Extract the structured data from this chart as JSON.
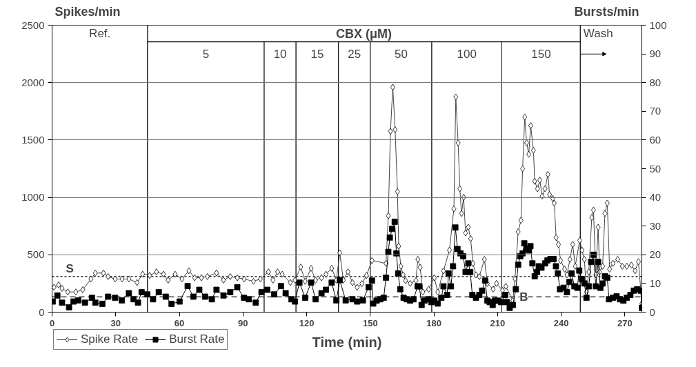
{
  "chart_data": {
    "type": "line",
    "ylabel": "Spikes/min",
    "y2label": "Bursts/min",
    "xlabel": "Time (min)",
    "xlim": [
      0,
      278
    ],
    "xticks": [
      0,
      30,
      60,
      90,
      120,
      150,
      180,
      210,
      240,
      270
    ],
    "ylim": [
      0,
      2500
    ],
    "yticks": [
      0,
      500,
      1000,
      1500,
      2000,
      2500
    ],
    "y2lim": [
      0,
      100
    ],
    "y2ticks": [
      0,
      10,
      20,
      30,
      40,
      50,
      60,
      70,
      80,
      90,
      100
    ],
    "grid": "y",
    "legend": "bottom left",
    "line_style": "solid",
    "bands": [
      {
        "axis": "x",
        "from": 0,
        "to": 45,
        "label": "Ref.",
        "color": "#ffffff"
      },
      {
        "axis": "x",
        "from": 45,
        "to": 100,
        "label": "5",
        "color": "#ffffff"
      },
      {
        "axis": "x",
        "from": 100,
        "to": 115,
        "label": "10",
        "color": "#ffffff"
      },
      {
        "axis": "x",
        "from": 115,
        "to": 135,
        "label": "15",
        "color": "#ffffff"
      },
      {
        "axis": "x",
        "from": 135,
        "to": 150,
        "label": "25",
        "color": "#ffffff"
      },
      {
        "axis": "x",
        "from": 150,
        "to": 179,
        "label": "50",
        "color": "#ffffff"
      },
      {
        "axis": "x",
        "from": 179,
        "to": 212,
        "label": "100",
        "color": "#ffffff"
      },
      {
        "axis": "x",
        "from": 212,
        "to": 249,
        "label": "150",
        "color": "#ffffff"
      },
      {
        "axis": "x",
        "from": 249,
        "to": 278,
        "label": "Wash",
        "color": "#ffffff"
      },
      {
        "axis": "x",
        "from": 45,
        "to": 249,
        "label": "CBX (μM)",
        "color": "#ffffff"
      }
    ],
    "ref_lines": [
      {
        "axis": "y",
        "value": 310,
        "label": "S",
        "line_style": "dotted"
      },
      {
        "axis": "y2",
        "value": 5.3,
        "label": "B",
        "line_style": "dashed"
      }
    ],
    "series": [
      {
        "name": "Spike Rate",
        "color": "#444444",
        "marker": "diamond",
        "x": [
          0.9,
          3.1,
          4.7,
          7.4,
          11.2,
          14.5,
          18.3,
          20.4,
          24.2,
          26.4,
          29.7,
          33,
          36.2,
          40,
          42.7,
          46,
          49.2,
          52.5,
          54.7,
          58,
          61.2,
          64.5,
          67.2,
          70.4,
          73.2,
          77.5,
          80.8,
          84,
          87.3,
          90.5,
          94.9,
          98.2,
          102,
          104.1,
          106.3,
          108.5,
          112.3,
          114.5,
          117.2,
          119.3,
          122.1,
          124.2,
          127,
          129.1,
          131.8,
          134,
          135.6,
          137.3,
          139.5,
          141.6,
          143.8,
          146,
          148.2,
          150.8,
          157.4,
          158.5,
          159.5,
          160.6,
          161.7,
          162.8,
          163.4,
          164.4,
          165.5,
          166.6,
          168.8,
          171.5,
          172.4,
          173.5,
          174.8,
          177.5,
          180.2,
          181.8,
          184.5,
          187.3,
          189.4,
          190.3,
          191.4,
          192.2,
          193,
          194,
          194.9,
          196.2,
          197.3,
          198.4,
          199.8,
          201.4,
          203.8,
          205.2,
          207.9,
          209.5,
          212.3,
          213.9,
          217.2,
          218.2,
          219.7,
          221,
          221.8,
          222.8,
          223.7,
          224.7,
          225.6,
          226.9,
          227.5,
          228.8,
          229.9,
          231,
          232.4,
          233.7,
          234.5,
          236,
          236.7,
          237.6,
          238.7,
          239.7,
          241.6,
          242.7,
          244.1,
          245.4,
          246.6,
          248.7,
          249.8,
          250.9,
          251.9,
          253,
          254.4,
          255.2,
          256.3,
          257.4,
          258.1,
          259.5,
          260.6,
          261.7,
          262.8,
          264.4,
          266.6,
          268.8,
          270.9,
          273.1,
          274.8,
          276.4,
          278
        ],
        "values": [
          217,
          238,
          207,
          176,
          176,
          196,
          289,
          341,
          341,
          310,
          289,
          289,
          289,
          258,
          330,
          320,
          351,
          330,
          279,
          330,
          289,
          361,
          300,
          300,
          310,
          341,
          279,
          310,
          300,
          289,
          269,
          289,
          351,
          279,
          351,
          330,
          258,
          279,
          393,
          269,
          382,
          279,
          300,
          330,
          382,
          279,
          517,
          279,
          351,
          258,
          217,
          248,
          320,
          450,
          425,
          840,
          1575,
          1960,
          1590,
          1050,
          575,
          400,
          325,
          275,
          250,
          275,
          460,
          390,
          175,
          200,
          300,
          175,
          360,
          540,
          900,
          1875,
          1475,
          1075,
          860,
          1000,
          690,
          740,
          640,
          425,
          325,
          310,
          460,
          250,
          200,
          250,
          190,
          225,
          100,
          290,
          700,
          800,
          1250,
          1700,
          1475,
          1375,
          1625,
          1410,
          1140,
          1075,
          1150,
          1010,
          1075,
          1200,
          1025,
          990,
          950,
          650,
          590,
          450,
          375,
          325,
          460,
          590,
          400,
          625,
          540,
          460,
          175,
          350,
          825,
          890,
          325,
          740,
          350,
          400,
          860,
          950,
          375,
          425,
          460,
          400,
          400,
          410,
          360,
          440,
          75
        ]
      },
      {
        "name": "Burst Rate",
        "color": "#000000",
        "marker": "square",
        "axis": "y2",
        "x": [
          0.3,
          2.5,
          4.7,
          8,
          10.1,
          12.3,
          15.5,
          18.8,
          20.4,
          23.7,
          26.4,
          29.7,
          32.9,
          36.2,
          38.4,
          40.5,
          42.2,
          44.9,
          47.6,
          50.3,
          53.6,
          56.3,
          60.1,
          63.9,
          66.6,
          69.4,
          72.1,
          75.3,
          77.5,
          80.8,
          84,
          87.3,
          90.5,
          92.7,
          96,
          98.7,
          101.4,
          104.7,
          107.9,
          110.1,
          112.8,
          114.5,
          116.6,
          119.3,
          122.1,
          124.2,
          127,
          129.1,
          131.8,
          134,
          135.6,
          138.4,
          141.6,
          143.8,
          146.5,
          149.2,
          150.8,
          151.4,
          153,
          154.7,
          156.3,
          157.4,
          158.5,
          159.2,
          160.3,
          161.5,
          162.3,
          163.1,
          164.1,
          165.7,
          167.2,
          168.8,
          170.4,
          172.3,
          173.1,
          174.2,
          175.5,
          177.3,
          178.8,
          180.2,
          181.8,
          183.5,
          184.5,
          186.2,
          186.9,
          188,
          189,
          190.1,
          191.1,
          192.5,
          193.8,
          194.9,
          196.2,
          197.1,
          198.1,
          199.8,
          201.4,
          202.7,
          204.1,
          205.2,
          206.3,
          207.7,
          208.8,
          210.1,
          211.7,
          213.6,
          214.4,
          215.7,
          217.2,
          218.6,
          219.7,
          220.7,
          221.8,
          222.6,
          223.7,
          224.8,
          225.5,
          226.4,
          227.5,
          228.6,
          229.4,
          230.7,
          232.4,
          233.5,
          234.9,
          236.4,
          237.5,
          238.4,
          239.4,
          241.1,
          242.7,
          243.8,
          244.9,
          246.2,
          247.6,
          248.5,
          249.8,
          250.9,
          251.9,
          253,
          254.1,
          255.2,
          256.3,
          257.4,
          258.5,
          259.5,
          260.6,
          261.7,
          262.5,
          264.4,
          266.1,
          267.7,
          269.3,
          270.9,
          272.6,
          274.2,
          275.8,
          277.5,
          278
        ],
        "values": [
          3.7,
          5.8,
          3.3,
          1.7,
          3.7,
          4.1,
          3.3,
          5,
          3.3,
          2.9,
          5.4,
          5,
          4.1,
          6.6,
          4.5,
          3.3,
          7,
          6.2,
          4.5,
          7,
          5.4,
          2.9,
          3.7,
          9.1,
          5.4,
          7.8,
          5.4,
          4.5,
          7.8,
          5.8,
          7,
          8.7,
          5,
          4.5,
          3.3,
          7,
          7.8,
          6.2,
          9.1,
          6.6,
          4.5,
          3.7,
          10.3,
          5,
          10.3,
          4.5,
          6.6,
          7.8,
          10.3,
          4.1,
          11.2,
          4.1,
          4.5,
          3.7,
          4.1,
          8.7,
          11,
          3,
          4,
          4.5,
          5,
          12,
          21,
          26,
          29,
          31.5,
          20.5,
          13.5,
          8,
          5,
          4.5,
          4,
          4.5,
          9,
          9,
          2.5,
          4,
          4.5,
          3.5,
          4,
          3,
          5,
          9,
          6,
          13.5,
          9,
          16,
          29.5,
          22,
          20.5,
          19.5,
          14,
          17,
          14,
          6,
          5,
          6,
          7.5,
          11,
          4,
          3.5,
          2.5,
          4,
          4,
          3.5,
          6,
          3.5,
          1.5,
          2.5,
          8,
          16.5,
          19.5,
          20.5,
          24,
          22,
          21.5,
          23,
          17,
          12.5,
          14,
          16,
          15.5,
          17,
          18,
          18.5,
          18.5,
          16,
          13.5,
          8,
          8.5,
          7,
          10.5,
          13.5,
          9,
          8.5,
          14.5,
          11.5,
          10,
          5,
          9,
          17.5,
          20,
          9,
          17.5,
          8.5,
          10,
          12.5,
          12,
          4.5,
          5,
          5.5,
          4.5,
          4,
          5,
          6,
          7.5,
          8,
          7.5,
          1.5
        ]
      }
    ]
  }
}
